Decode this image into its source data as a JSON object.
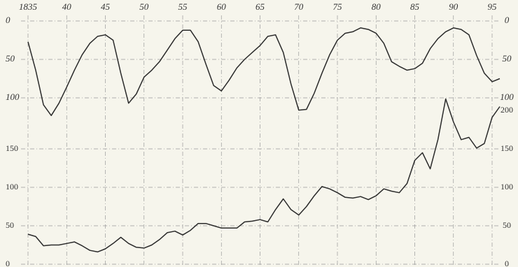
{
  "chart_data": [
    {
      "type": "line",
      "inverted": true,
      "grid": true,
      "color": "#2a2a2a",
      "x": [
        1835,
        1836,
        1837,
        1838,
        1839,
        1840,
        1841,
        1842,
        1843,
        1844,
        1845,
        1846,
        1847,
        1848,
        1849,
        1850,
        1851,
        1852,
        1853,
        1854,
        1855,
        1856,
        1857,
        1858,
        1859,
        1860,
        1861,
        1862,
        1863,
        1864,
        1865,
        1866,
        1867,
        1868,
        1869,
        1870,
        1871,
        1872,
        1873,
        1874,
        1875,
        1876,
        1877,
        1878,
        1879,
        1880,
        1881,
        1882,
        1883,
        1884,
        1885,
        1886,
        1887,
        1888,
        1889,
        1890,
        1891,
        1892,
        1893,
        1894,
        1895,
        1896
      ],
      "values": [
        27,
        64,
        109,
        123,
        107,
        86,
        64,
        44,
        29,
        20,
        18,
        25,
        68,
        107,
        95,
        73,
        64,
        53,
        38,
        23,
        12,
        12,
        27,
        56,
        84,
        91,
        77,
        61,
        50,
        41,
        32,
        20,
        18,
        41,
        82,
        116,
        115,
        94,
        68,
        44,
        25,
        16,
        14,
        9,
        11,
        16,
        29,
        53,
        59,
        64,
        62,
        55,
        36,
        23,
        14,
        9,
        11,
        18,
        45,
        68,
        79,
        75
      ],
      "xlim": [
        1835,
        1895
      ],
      "xticks": [
        {
          "value": 1835,
          "label": "1835"
        },
        {
          "value": 1840,
          "label": "40"
        },
        {
          "value": 1845,
          "label": "45"
        },
        {
          "value": 1850,
          "label": "50"
        },
        {
          "value": 1855,
          "label": "55"
        },
        {
          "value": 1860,
          "label": "60"
        },
        {
          "value": 1865,
          "label": "65"
        },
        {
          "value": 1870,
          "label": "70"
        },
        {
          "value": 1875,
          "label": "75"
        },
        {
          "value": 1880,
          "label": "80"
        },
        {
          "value": 1885,
          "label": "85"
        },
        {
          "value": 1890,
          "label": "90"
        },
        {
          "value": 1895,
          "label": "95"
        }
      ],
      "ylim": [
        0,
        100
      ],
      "yticks": [
        0,
        50,
        100
      ],
      "y2lim": [
        0,
        100
      ],
      "y2ticks": [
        0,
        50,
        100
      ]
    },
    {
      "type": "line",
      "grid": true,
      "color": "#2a2a2a",
      "x": [
        1835,
        1836,
        1837,
        1838,
        1839,
        1840,
        1841,
        1842,
        1843,
        1844,
        1845,
        1846,
        1847,
        1848,
        1849,
        1850,
        1851,
        1852,
        1853,
        1854,
        1855,
        1856,
        1857,
        1858,
        1859,
        1860,
        1861,
        1862,
        1863,
        1864,
        1865,
        1866,
        1867,
        1868,
        1869,
        1870,
        1871,
        1872,
        1873,
        1874,
        1875,
        1876,
        1877,
        1878,
        1879,
        1880,
        1881,
        1882,
        1883,
        1884,
        1885,
        1886,
        1887,
        1888,
        1889,
        1890,
        1891,
        1892,
        1893,
        1894,
        1895,
        1896
      ],
      "values": [
        39,
        36,
        24,
        25,
        25,
        27,
        29,
        24,
        18,
        16,
        20,
        27,
        35,
        27,
        22,
        21,
        25,
        32,
        41,
        43,
        38,
        44,
        53,
        53,
        50,
        47,
        47,
        47,
        55,
        56,
        58,
        55,
        71,
        85,
        71,
        64,
        75,
        89,
        101,
        98,
        93,
        87,
        86,
        88,
        84,
        89,
        98,
        95,
        93,
        105,
        135,
        145,
        124,
        162,
        215,
        185,
        162,
        165,
        151,
        157,
        191,
        205
      ],
      "xlim": [
        1835,
        1895
      ],
      "ylim": [
        0,
        200
      ],
      "yticks": [
        0,
        50,
        100,
        150
      ],
      "y2lim": [
        0,
        200
      ],
      "y2ticks": [
        0,
        50,
        100,
        150,
        200
      ]
    }
  ]
}
